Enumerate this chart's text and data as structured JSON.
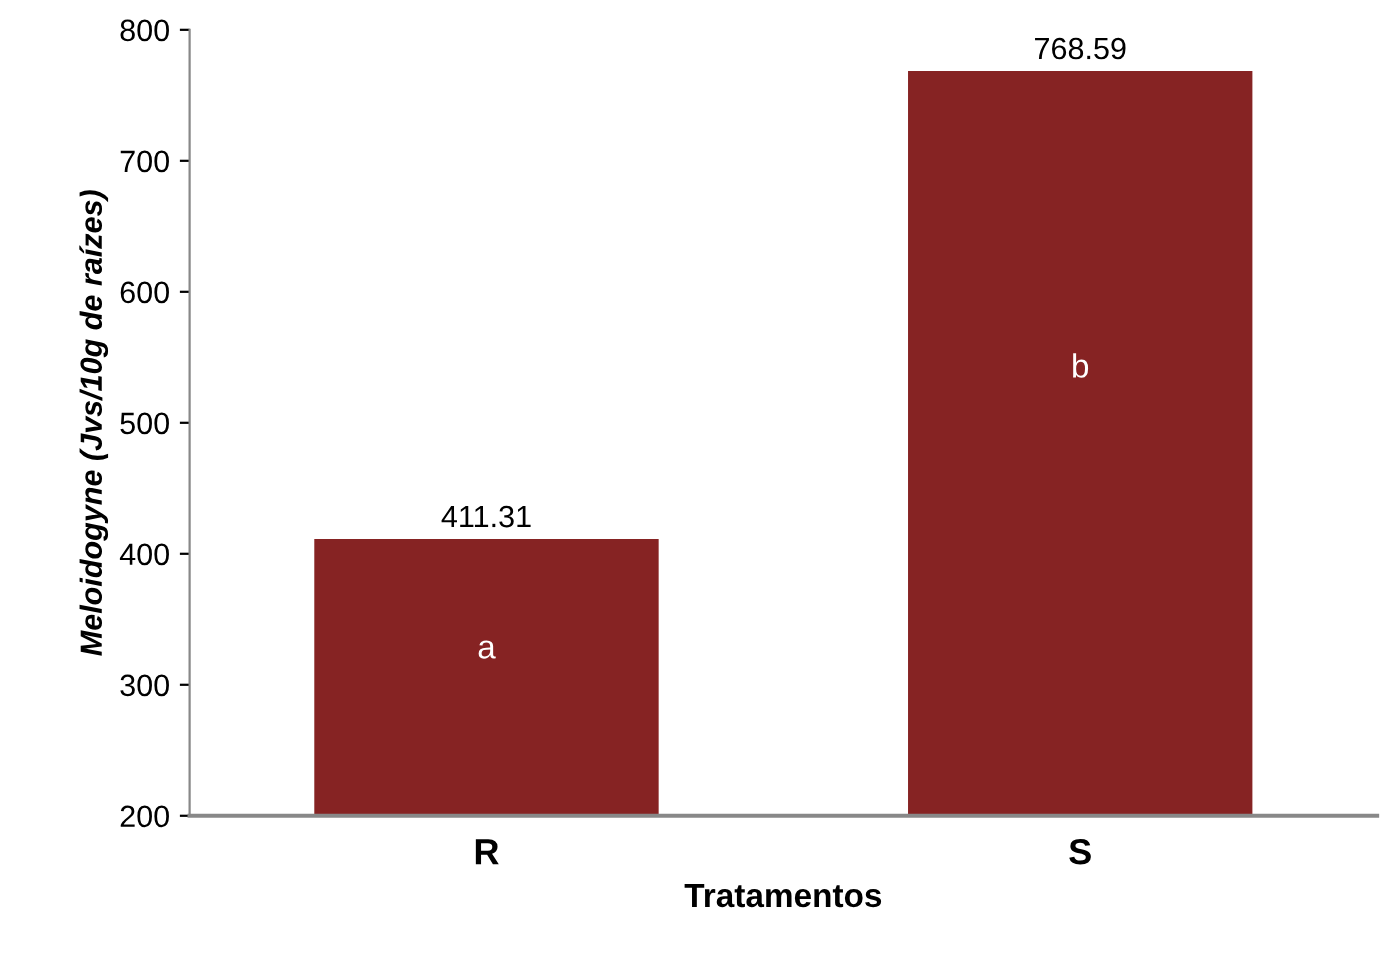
{
  "chart_data": {
    "type": "bar",
    "xlabel": "Tratamentos",
    "ylabel": "Meloidogyne (Jvs/10g de raízes)",
    "categories": [
      "R",
      "S"
    ],
    "values": [
      411.31,
      768.59
    ],
    "color": "#862323",
    "ylim": [
      200,
      800
    ],
    "yticks": [
      200,
      300,
      400,
      500,
      600,
      700,
      800
    ],
    "grid": false,
    "data_labels": true,
    "annotations": [
      "a",
      "b"
    ]
  }
}
